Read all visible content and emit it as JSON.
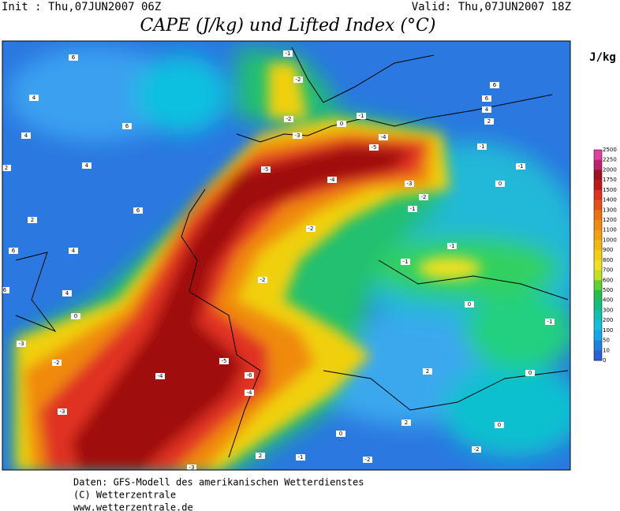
{
  "header": {
    "init": "Init : Thu,07JUN2007 06Z",
    "valid": "Valid: Thu,07JUN2007 18Z",
    "title": "CAPE (J/kg) und Lifted Index (°C)"
  },
  "legend": {
    "unit": "J/kg",
    "labels": [
      2500,
      2250,
      2000,
      1750,
      1500,
      1400,
      1300,
      1200,
      1100,
      1000,
      900,
      800,
      700,
      600,
      500,
      400,
      300,
      200,
      100,
      50,
      10,
      0
    ],
    "colors": [
      "#e040a0",
      "#c02070",
      "#a01020",
      "#c01818",
      "#e03020",
      "#e85018",
      "#f07010",
      "#f08a10",
      "#f0a010",
      "#f0b810",
      "#f0d010",
      "#f0e020",
      "#c0e020",
      "#60d030",
      "#20c050",
      "#10c080",
      "#10c0b0",
      "#10c0d8",
      "#10a8e8",
      "#2080e0",
      "#2a60d8"
    ]
  },
  "contour_labels": [
    -1,
    -2,
    -2,
    -3,
    -4,
    -5,
    -5,
    -4,
    -3,
    -2,
    -1,
    -2,
    -1,
    -1,
    -2,
    -3,
    -2,
    -4,
    -5,
    -6,
    -4,
    -3,
    -3,
    -1,
    -2,
    -2,
    -1,
    -1,
    0,
    0,
    -1,
    0,
    2,
    2,
    0,
    0,
    2,
    6,
    4,
    4,
    2,
    4,
    6,
    6,
    2,
    6,
    4,
    6,
    4,
    0,
    6,
    6,
    4,
    2,
    0,
    -1
  ],
  "footer": [
    "Daten: GFS-Modell des amerikanischen Wetterdienstes",
    "(C) Wetterzentrale",
    "www.wetterzentrale.de"
  ]
}
